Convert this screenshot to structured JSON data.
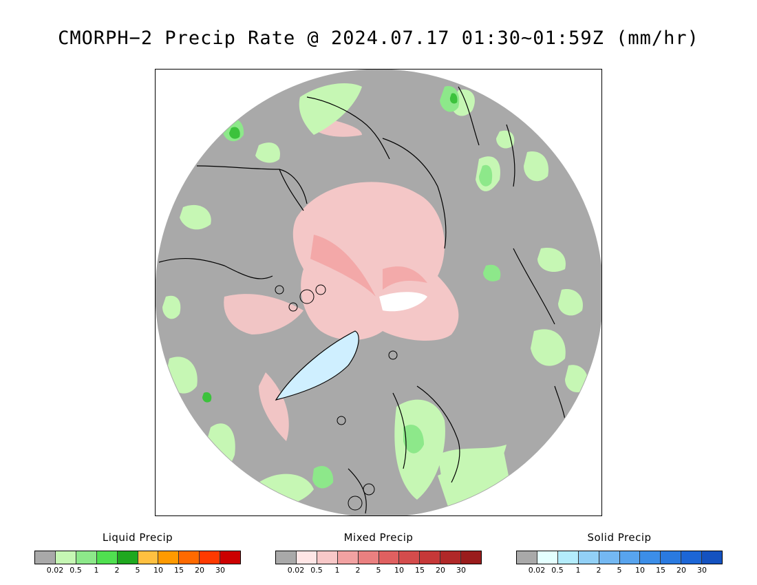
{
  "title": "CMORPH−2 Precip Rate @ 2024.07.17 01:30~01:59Z (mm/hr)",
  "map": {
    "projection": "north-polar-stereographic",
    "background_color": "#a9a9a9",
    "outline_color": "#000000",
    "regions": [
      {
        "type": "liquid",
        "color": "#c6f7b4"
      },
      {
        "type": "liquid",
        "color": "#8de88a"
      },
      {
        "type": "liquid",
        "color": "#3cc23c"
      },
      {
        "type": "mixed",
        "color": "#f8c8c8"
      },
      {
        "type": "mixed",
        "color": "#f2a2a2"
      },
      {
        "type": "solid",
        "color": "#cfefff"
      },
      {
        "type": "solid",
        "color": "#ffffff"
      }
    ]
  },
  "legends": [
    {
      "title": "Liquid Precip",
      "colors": [
        "#a9a9a9",
        "#c6f7b4",
        "#8de88a",
        "#50e050",
        "#1fa81f",
        "#ffc040",
        "#ff9a00",
        "#ff6a00",
        "#ff3a00",
        "#cc0000"
      ],
      "ticks": [
        "0.02",
        "0.5",
        "1",
        "2",
        "5",
        "10",
        "15",
        "20",
        "30"
      ]
    },
    {
      "title": "Mixed Precip",
      "colors": [
        "#a9a9a9",
        "#ffe6e6",
        "#f8c8c8",
        "#f2a2a2",
        "#ea8080",
        "#e06060",
        "#d44c4c",
        "#c63838",
        "#b02828",
        "#9a1c1c"
      ],
      "ticks": [
        "0.02",
        "0.5",
        "1",
        "2",
        "5",
        "10",
        "15",
        "20",
        "30"
      ]
    },
    {
      "title": "Solid Precip",
      "colors": [
        "#a9a9a9",
        "#e4ffff",
        "#b4ecfc",
        "#92d0f6",
        "#74b8f2",
        "#58a4ee",
        "#3c8ee8",
        "#2a7ae0",
        "#1c66d6",
        "#1452c0"
      ],
      "ticks": [
        "0.02",
        "0.5",
        "1",
        "2",
        "5",
        "10",
        "15",
        "20",
        "30"
      ]
    }
  ]
}
